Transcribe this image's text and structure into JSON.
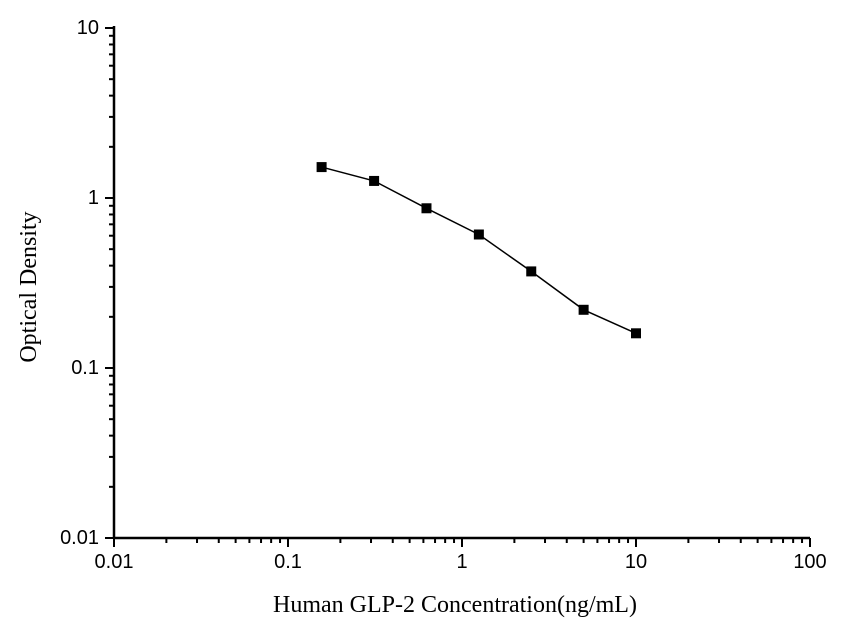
{
  "chart_data": {
    "type": "line",
    "xlabel": "Human GLP-2 Concentration(ng/mL)",
    "ylabel": "Optical Density",
    "x_scale": "log",
    "y_scale": "log",
    "xlim": [
      0.01,
      100
    ],
    "ylim": [
      0.01,
      10
    ],
    "x_tick_labels": [
      "0.01",
      "0.1",
      "1",
      "10",
      "100"
    ],
    "x_tick_values": [
      0.01,
      0.1,
      1,
      10,
      100
    ],
    "y_tick_labels": [
      "0.01",
      "0.1",
      "1",
      "10"
    ],
    "y_tick_values": [
      0.01,
      0.1,
      1,
      10
    ],
    "grid": false,
    "legend": "none",
    "background_color": "#ffffff",
    "axis_color": "#000000",
    "series": [
      {
        "x": [
          0.156,
          0.3125,
          0.625,
          1.25,
          2.5,
          5,
          10
        ],
        "y": [
          1.52,
          1.26,
          0.87,
          0.61,
          0.37,
          0.22,
          0.16
        ],
        "marker": "filled-square",
        "marker_size": 10,
        "line_color": "#000000",
        "marker_color": "#000000"
      }
    ]
  }
}
